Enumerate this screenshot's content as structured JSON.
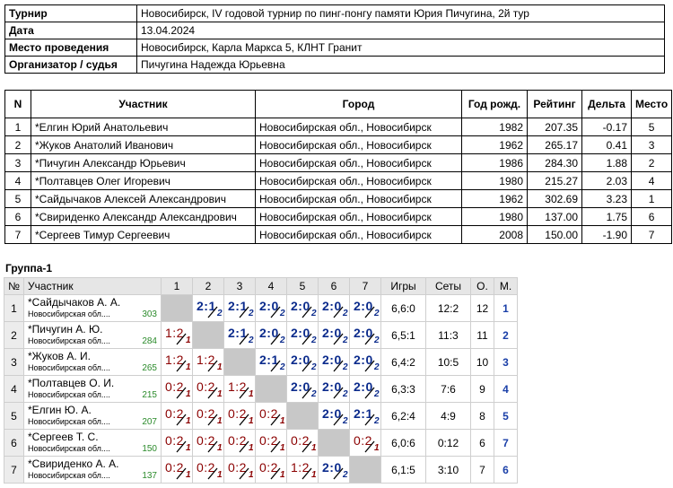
{
  "info": [
    {
      "key": "Турнир",
      "value": "Новосибирск, IV годовой турнир по пинг-понгу памяти Юрия Пичугина, 2й тур"
    },
    {
      "key": "Дата",
      "value": "13.04.2024"
    },
    {
      "key": "Место проведения",
      "value": "Новосибирск, Карла Маркса 5, КЛНТ Гранит"
    },
    {
      "key": "Организатор / судья",
      "value": "Пичугина Надежда Юрьевна"
    }
  ],
  "participants": {
    "headers": [
      "N",
      "Участник",
      "Город",
      "Год рожд.",
      "Рейтинг",
      "Дельта",
      "Место"
    ],
    "rows": [
      {
        "n": "1",
        "name": "*Елгин Юрий Анатольевич",
        "city": "Новосибирская обл., Новосибирск",
        "year": "1982",
        "rating": "207.35",
        "delta": "-0.17",
        "place": "5"
      },
      {
        "n": "2",
        "name": "*Жуков Анатолий Иванович",
        "city": "Новосибирская обл., Новосибирск",
        "year": "1962",
        "rating": "265.17",
        "delta": "0.41",
        "place": "3"
      },
      {
        "n": "3",
        "name": "*Пичугин Александр Юрьевич",
        "city": "Новосибирская обл., Новосибирск",
        "year": "1986",
        "rating": "284.30",
        "delta": "1.88",
        "place": "2"
      },
      {
        "n": "4",
        "name": "*Полтавцев Олег Игоревич",
        "city": "Новосибирская обл., Новосибирск",
        "year": "1980",
        "rating": "215.27",
        "delta": "2.03",
        "place": "4"
      },
      {
        "n": "5",
        "name": "*Сайдычаков Алексей Александрович",
        "city": "Новосибирская обл., Новосибирск",
        "year": "1962",
        "rating": "302.69",
        "delta": "3.23",
        "place": "1"
      },
      {
        "n": "6",
        "name": "*Свириденко Александр Александрович",
        "city": "Новосибирская обл., Новосибирск",
        "year": "1980",
        "rating": "137.00",
        "delta": "1.75",
        "place": "6"
      },
      {
        "n": "7",
        "name": "*Сергеев Тимур Сергеевич",
        "city": "Новосибирская обл., Новосибирск",
        "year": "2008",
        "rating": "150.00",
        "delta": "-1.90",
        "place": "7"
      }
    ]
  },
  "group": {
    "title": "Группа-1",
    "headers": {
      "num": "№",
      "player": "Участник",
      "cols": [
        "1",
        "2",
        "3",
        "4",
        "5",
        "6",
        "7"
      ],
      "games": "Игры",
      "sets": "Сеты",
      "points": "О.",
      "place": "М."
    },
    "rows": [
      {
        "num": "1",
        "name": "*Сайдычаков А. А.",
        "city": "Новосибирская обл....",
        "rating": "303",
        "results": [
          null,
          {
            "s": "2:1",
            "p": "2",
            "w": true
          },
          {
            "s": "2:1",
            "p": "2",
            "w": true
          },
          {
            "s": "2:0",
            "p": "2",
            "w": true
          },
          {
            "s": "2:0",
            "p": "2",
            "w": true
          },
          {
            "s": "2:0",
            "p": "2",
            "w": true
          },
          {
            "s": "2:0",
            "p": "2",
            "w": true
          }
        ],
        "games": "6,6:0",
        "sets": "12:2",
        "points": "12",
        "place": "1"
      },
      {
        "num": "2",
        "name": "*Пичугин А. Ю.",
        "city": "Новосибирская обл....",
        "rating": "284",
        "results": [
          {
            "s": "1:2",
            "p": "1",
            "w": false
          },
          null,
          {
            "s": "2:1",
            "p": "2",
            "w": true
          },
          {
            "s": "2:0",
            "p": "2",
            "w": true
          },
          {
            "s": "2:0",
            "p": "2",
            "w": true
          },
          {
            "s": "2:0",
            "p": "2",
            "w": true
          },
          {
            "s": "2:0",
            "p": "2",
            "w": true
          }
        ],
        "games": "6,5:1",
        "sets": "11:3",
        "points": "11",
        "place": "2"
      },
      {
        "num": "3",
        "name": "*Жуков А. И.",
        "city": "Новосибирская обл....",
        "rating": "265",
        "results": [
          {
            "s": "1:2",
            "p": "1",
            "w": false
          },
          {
            "s": "1:2",
            "p": "1",
            "w": false
          },
          null,
          {
            "s": "2:1",
            "p": "2",
            "w": true
          },
          {
            "s": "2:0",
            "p": "2",
            "w": true
          },
          {
            "s": "2:0",
            "p": "2",
            "w": true
          },
          {
            "s": "2:0",
            "p": "2",
            "w": true
          }
        ],
        "games": "6,4:2",
        "sets": "10:5",
        "points": "10",
        "place": "3"
      },
      {
        "num": "4",
        "name": "*Полтавцев О. И.",
        "city": "Новосибирская обл....",
        "rating": "215",
        "results": [
          {
            "s": "0:2",
            "p": "1",
            "w": false
          },
          {
            "s": "0:2",
            "p": "1",
            "w": false
          },
          {
            "s": "1:2",
            "p": "1",
            "w": false
          },
          null,
          {
            "s": "2:0",
            "p": "2",
            "w": true
          },
          {
            "s": "2:0",
            "p": "2",
            "w": true
          },
          {
            "s": "2:0",
            "p": "2",
            "w": true
          }
        ],
        "games": "6,3:3",
        "sets": "7:6",
        "points": "9",
        "place": "4"
      },
      {
        "num": "5",
        "name": "*Елгин Ю. А.",
        "city": "Новосибирская обл....",
        "rating": "207",
        "results": [
          {
            "s": "0:2",
            "p": "1",
            "w": false
          },
          {
            "s": "0:2",
            "p": "1",
            "w": false
          },
          {
            "s": "0:2",
            "p": "1",
            "w": false
          },
          {
            "s": "0:2",
            "p": "1",
            "w": false
          },
          null,
          {
            "s": "2:0",
            "p": "2",
            "w": true
          },
          {
            "s": "2:1",
            "p": "2",
            "w": true
          }
        ],
        "games": "6,2:4",
        "sets": "4:9",
        "points": "8",
        "place": "5"
      },
      {
        "num": "6",
        "name": "*Сергеев Т. С.",
        "city": "Новосибирская обл....",
        "rating": "150",
        "results": [
          {
            "s": "0:2",
            "p": "1",
            "w": false
          },
          {
            "s": "0:2",
            "p": "1",
            "w": false
          },
          {
            "s": "0:2",
            "p": "1",
            "w": false
          },
          {
            "s": "0:2",
            "p": "1",
            "w": false
          },
          {
            "s": "0:2",
            "p": "1",
            "w": false
          },
          null,
          {
            "s": "0:2",
            "p": "1",
            "w": false
          }
        ],
        "games": "6,0:6",
        "sets": "0:12",
        "points": "6",
        "place": "7"
      },
      {
        "num": "7",
        "name": "*Свириденко А. А.",
        "city": "Новосибирская обл....",
        "rating": "137",
        "results": [
          {
            "s": "0:2",
            "p": "1",
            "w": false
          },
          {
            "s": "0:2",
            "p": "1",
            "w": false
          },
          {
            "s": "0:2",
            "p": "1",
            "w": false
          },
          {
            "s": "0:2",
            "p": "1",
            "w": false
          },
          {
            "s": "1:2",
            "p": "1",
            "w": false
          },
          {
            "s": "2:0",
            "p": "2",
            "w": true
          },
          null
        ],
        "games": "6,1:5",
        "sets": "3:10",
        "points": "7",
        "place": "6"
      }
    ]
  },
  "colors": {
    "win": "#0b2b8c",
    "loss": "#8b0000",
    "rating": "#2a8a2a",
    "place": "#1a3fa8",
    "diagonal": "#c8c8c8",
    "header_bg": "#e6e6e6"
  }
}
